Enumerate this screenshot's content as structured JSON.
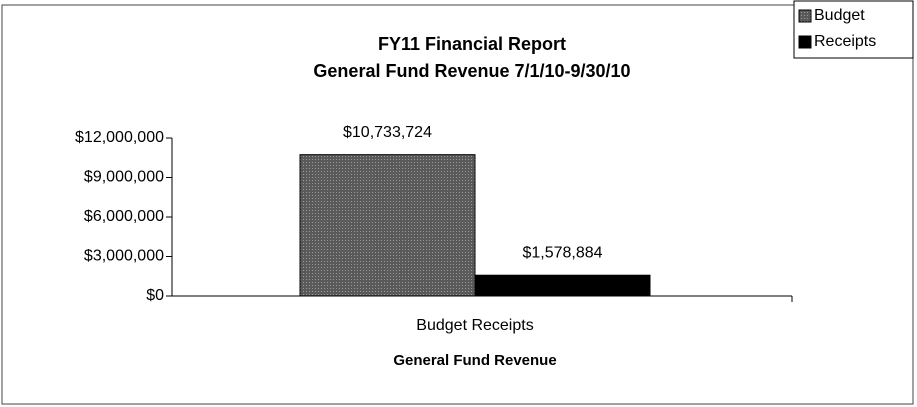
{
  "chart_data": {
    "type": "bar",
    "title": "FY11 Financial Report",
    "subtitle": "General Fund Revenue 7/1/10-9/30/10",
    "categories": [
      "Budget Receipts"
    ],
    "x_label": "General Fund Revenue",
    "series": [
      {
        "name": "Budget",
        "color": "#4a4a4a",
        "values": [
          10733724
        ],
        "value_labels": [
          "$10,733,724"
        ]
      },
      {
        "name": "Receipts",
        "color": "#000000",
        "values": [
          1578884
        ],
        "value_labels": [
          "$1,578,884"
        ]
      }
    ],
    "ylim": [
      0,
      12000000
    ],
    "yticks": [
      {
        "value": 0,
        "label": "$0"
      },
      {
        "value": 3000000,
        "label": "$3,000,000"
      },
      {
        "value": 6000000,
        "label": "$6,000,000"
      },
      {
        "value": 9000000,
        "label": "$9,000,000"
      },
      {
        "value": 12000000,
        "label": "$12,000,000"
      }
    ],
    "grid": false,
    "legend": "top-right"
  }
}
